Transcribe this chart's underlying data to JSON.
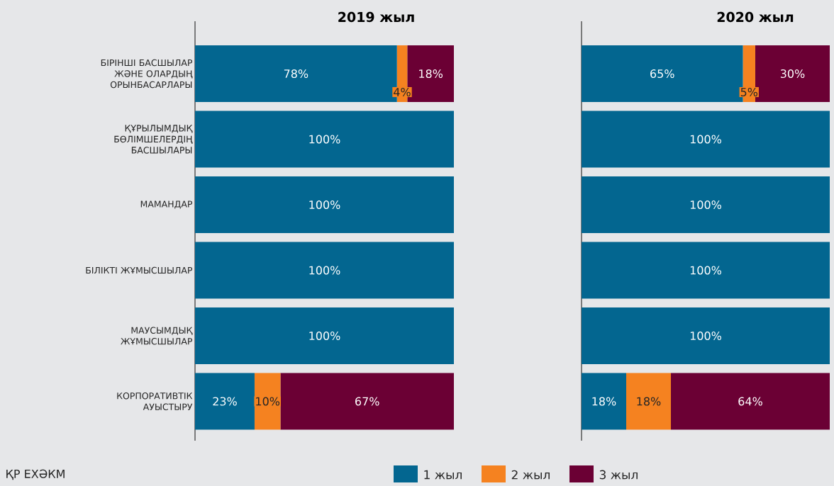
{
  "chart_data": [
    {
      "type": "bar",
      "orientation": "horizontal",
      "stacked": true,
      "title": "2019 жыл",
      "categories": [
        "БІРІНШІ БАСШЫЛАР ЖӘНЕ ОЛАРДЫҢ ОРЫНБАСАРЛАРЫ",
        "ҚҰРЫЛЫМДЫҚ БӨЛІМШЕЛЕРДІҢ БАСШЫЛАРЫ",
        "МАМАНДАР",
        "БІЛІКТІ ЖҰМЫСШЫЛАР",
        "МАУСЫМДЫҚ ЖҰМЫСШЫЛАР",
        "КОРПОРАТИВТІК АУЫСТЫРУ"
      ],
      "series": [
        {
          "name": "1 жыл",
          "color": "#036690",
          "values": [
            78,
            100,
            100,
            100,
            100,
            23
          ],
          "value_labels": [
            "78%",
            "100%",
            "100%",
            "100%",
            "100%",
            "23%"
          ]
        },
        {
          "name": "2 жыл",
          "color": "#f58220",
          "values": [
            4,
            null,
            null,
            null,
            null,
            10
          ],
          "value_labels": [
            "4%",
            null,
            null,
            null,
            null,
            "10%"
          ]
        },
        {
          "name": "3 жыл",
          "color": "#6b0034",
          "values": [
            18,
            null,
            null,
            null,
            null,
            67
          ],
          "value_labels": [
            "18%",
            null,
            null,
            null,
            null,
            "67%"
          ]
        }
      ],
      "legend": "bottom",
      "annotations": [
        "ҚР ЕХӘКМ"
      ]
    },
    {
      "type": "bar",
      "orientation": "horizontal",
      "stacked": true,
      "title": "2020 жыл",
      "categories": [
        null,
        null,
        null,
        null,
        null,
        null
      ],
      "series": [
        {
          "color": "#036690",
          "values": [
            65,
            100,
            100,
            100,
            100,
            18
          ],
          "value_labels": [
            "65%",
            "100%",
            "100%",
            "100%",
            "100%",
            "18%"
          ]
        },
        {
          "color": "#f58220",
          "values": [
            5,
            null,
            null,
            null,
            null,
            18
          ],
          "value_labels": [
            "5%",
            null,
            null,
            null,
            null,
            "18%"
          ]
        },
        {
          "color": "#6b0034",
          "values": [
            30,
            null,
            null,
            null,
            null,
            64
          ],
          "value_labels": [
            "30%",
            null,
            null,
            null,
            null,
            "64%"
          ]
        }
      ]
    }
  ]
}
